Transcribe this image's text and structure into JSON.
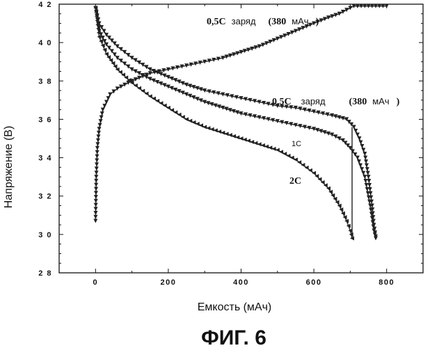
{
  "chart_data": {
    "type": "line",
    "xlabel": "Емкость (мАч)",
    "ylabel": "Напряжение (В)",
    "xlim": [
      -100,
      900
    ],
    "ylim": [
      2.8,
      4.2
    ],
    "x_ticks": [
      "0",
      "200",
      "400",
      "600",
      "800"
    ],
    "y_ticks": [
      "2.8",
      "3.0",
      "3.2",
      "3.4",
      "3.6",
      "3.8",
      "4.0",
      "4.2"
    ],
    "grid": false,
    "annotations": {
      "charge": {
        "rate": "0,5C",
        "word": "заряд",
        "cap_num": "(380",
        "cap_unit": "мАч",
        "close": ")"
      },
      "discharge_05c": {
        "rate": "0,5C",
        "word": "заряд",
        "cap_num": "(380",
        "cap_unit": "мАч",
        "close": ")"
      },
      "discharge_1c": "1C",
      "discharge_2c": "2C"
    },
    "caption": "ФИГ. 6",
    "series": [
      {
        "marker": "triangle-down",
        "x": [
          0,
          2,
          5,
          10,
          20,
          40,
          60,
          100,
          150,
          200,
          250,
          300,
          350,
          400,
          450,
          500,
          550,
          600,
          640,
          670,
          690,
          700,
          710,
          720
        ],
        "y": [
          3.07,
          3.3,
          3.45,
          3.55,
          3.65,
          3.73,
          3.76,
          3.8,
          3.84,
          3.86,
          3.88,
          3.9,
          3.92,
          3.95,
          3.98,
          4.02,
          4.06,
          4.1,
          4.13,
          4.15,
          4.17,
          4.18,
          4.19,
          4.19
        ]
      },
      {
        "marker": "triangle-down",
        "x": [
          720,
          740,
          760,
          780,
          800
        ],
        "y": [
          4.19,
          4.19,
          4.19,
          4.19,
          4.19
        ]
      },
      {
        "marker": "triangle-down",
        "x": [
          0,
          10,
          30,
          60,
          100,
          150,
          200,
          250,
          300,
          350,
          400,
          450,
          500,
          550,
          600,
          650,
          690,
          710,
          725,
          740,
          750,
          760,
          765,
          770
        ],
        "y": [
          4.18,
          4.1,
          4.04,
          3.98,
          3.92,
          3.86,
          3.82,
          3.78,
          3.75,
          3.73,
          3.71,
          3.69,
          3.67,
          3.66,
          3.64,
          3.62,
          3.6,
          3.56,
          3.5,
          3.42,
          3.3,
          3.15,
          3.05,
          2.99
        ]
      },
      {
        "marker": "triangle-down",
        "x": [
          0,
          10,
          30,
          60,
          100,
          150,
          200,
          250,
          300,
          350,
          400,
          450,
          500,
          550,
          600,
          650,
          680,
          700,
          720,
          740,
          755,
          765,
          770
        ],
        "y": [
          4.18,
          4.06,
          3.99,
          3.92,
          3.86,
          3.81,
          3.77,
          3.73,
          3.69,
          3.66,
          3.63,
          3.61,
          3.59,
          3.57,
          3.55,
          3.52,
          3.49,
          3.45,
          3.4,
          3.3,
          3.15,
          3.02,
          2.98
        ]
      },
      {
        "marker": "triangle-left",
        "x": [
          0,
          10,
          30,
          60,
          100,
          150,
          200,
          250,
          300,
          350,
          400,
          450,
          500,
          550,
          600,
          640,
          670,
          690,
          700,
          705
        ],
        "y": [
          4.18,
          4.03,
          3.94,
          3.86,
          3.79,
          3.72,
          3.66,
          3.6,
          3.56,
          3.53,
          3.5,
          3.47,
          3.44,
          3.39,
          3.32,
          3.24,
          3.15,
          3.07,
          3.02,
          2.98
        ]
      },
      {
        "marker": "none",
        "x": [
          705,
          705
        ],
        "y": [
          2.98,
          3.56
        ]
      }
    ]
  }
}
